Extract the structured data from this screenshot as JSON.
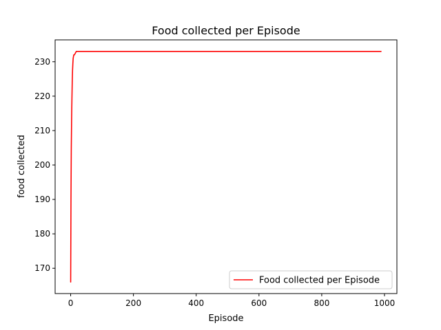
{
  "chart_data": {
    "type": "line",
    "title": "Food collected per Episode",
    "xlabel": "Episode",
    "ylabel": "food collected",
    "xlim": [
      -49.5,
      1039.5
    ],
    "ylim": [
      162.65,
      236.35
    ],
    "xticks": [
      0,
      200,
      400,
      600,
      800,
      1000
    ],
    "yticks": [
      170,
      180,
      190,
      200,
      210,
      220,
      230
    ],
    "grid": false,
    "legend_position": "lower right",
    "series": [
      {
        "name": "Food collected per Episode",
        "color": "#ff0000",
        "x": [
          0,
          1,
          2,
          3,
          4,
          5,
          6,
          7,
          8,
          10,
          12,
          15,
          18,
          20,
          25,
          30,
          100,
          300,
          500,
          700,
          900,
          989
        ],
        "y": [
          166,
          190,
          205,
          213,
          219,
          224,
          227.5,
          229.5,
          231,
          232,
          232,
          232.5,
          233,
          233,
          233,
          233,
          233,
          233,
          233,
          233,
          233,
          233
        ]
      }
    ]
  }
}
